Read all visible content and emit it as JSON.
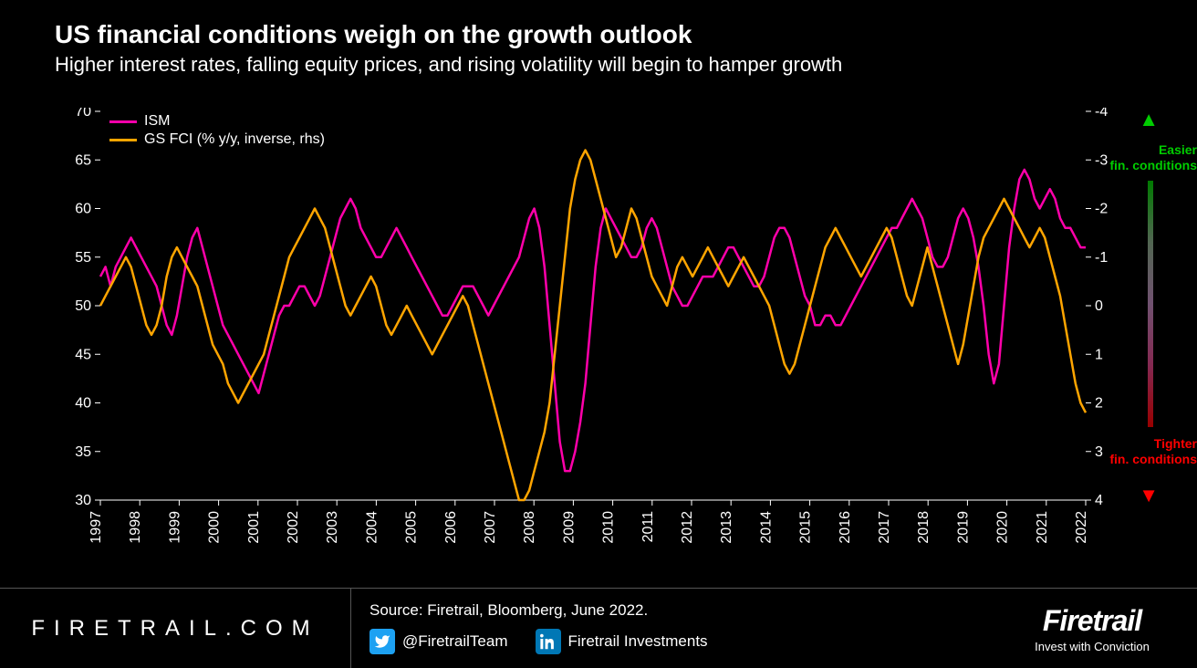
{
  "title": "US financial conditions weigh on the growth outlook",
  "subtitle": "Higher interest rates, falling equity prices, and rising volatility will begin to hamper growth",
  "chart": {
    "type": "line",
    "background_color": "#000000",
    "tick_color": "#ffffff",
    "tick_fontsize": 16,
    "line_width": 2.5,
    "left_axis": {
      "min": 30,
      "max": 70,
      "tick_step": 5,
      "ticks": [
        30,
        35,
        40,
        45,
        50,
        55,
        60,
        65,
        70
      ]
    },
    "right_axis": {
      "min": -4,
      "max": 4,
      "tick_step": 1,
      "ticks": [
        -4,
        -3,
        -2,
        -1,
        0,
        1,
        2,
        3,
        4
      ],
      "inverted": true
    },
    "x_axis": {
      "years": [
        1997,
        1998,
        1999,
        2000,
        2001,
        2002,
        2003,
        2004,
        2005,
        2006,
        2007,
        2008,
        2009,
        2010,
        2011,
        2012,
        2013,
        2014,
        2015,
        2016,
        2017,
        2018,
        2019,
        2020,
        2021,
        2022
      ],
      "label_rotation": -90
    },
    "series": [
      {
        "name": "ISM",
        "color": "#ff00aa",
        "axis": "left",
        "data": [
          53,
          54,
          52,
          54,
          55,
          56,
          57,
          56,
          55,
          54,
          53,
          52,
          50,
          48,
          47,
          49,
          52,
          55,
          57,
          58,
          56,
          54,
          52,
          50,
          48,
          47,
          46,
          45,
          44,
          43,
          42,
          41,
          43,
          45,
          47,
          49,
          50,
          50,
          51,
          52,
          52,
          51,
          50,
          51,
          53,
          55,
          57,
          59,
          60,
          61,
          60,
          58,
          57,
          56,
          55,
          55,
          56,
          57,
          58,
          57,
          56,
          55,
          54,
          53,
          52,
          51,
          50,
          49,
          49,
          50,
          51,
          52,
          52,
          52,
          51,
          50,
          49,
          50,
          51,
          52,
          53,
          54,
          55,
          57,
          59,
          60,
          58,
          54,
          48,
          42,
          36,
          33,
          33,
          35,
          38,
          42,
          48,
          54,
          58,
          60,
          59,
          58,
          57,
          56,
          55,
          55,
          56,
          58,
          59,
          58,
          56,
          54,
          52,
          51,
          50,
          50,
          51,
          52,
          53,
          53,
          53,
          54,
          55,
          56,
          56,
          55,
          54,
          53,
          52,
          52,
          53,
          55,
          57,
          58,
          58,
          57,
          55,
          53,
          51,
          50,
          48,
          48,
          49,
          49,
          48,
          48,
          49,
          50,
          51,
          52,
          53,
          54,
          55,
          56,
          57,
          58,
          58,
          59,
          60,
          61,
          60,
          59,
          57,
          55,
          54,
          54,
          55,
          57,
          59,
          60,
          59,
          57,
          54,
          50,
          45,
          42,
          44,
          50,
          56,
          60,
          63,
          64,
          63,
          61,
          60,
          61,
          62,
          61,
          59,
          58,
          58,
          57,
          56,
          56
        ]
      },
      {
        "name": "GS FCI (% y/y, inverse, rhs)",
        "color": "#ffa500",
        "axis": "right",
        "data": [
          0.0,
          -0.2,
          -0.4,
          -0.6,
          -0.8,
          -1.0,
          -0.8,
          -0.4,
          0.0,
          0.4,
          0.6,
          0.4,
          0.0,
          -0.6,
          -1.0,
          -1.2,
          -1.0,
          -0.8,
          -0.6,
          -0.4,
          0.0,
          0.4,
          0.8,
          1.0,
          1.2,
          1.6,
          1.8,
          2.0,
          1.8,
          1.6,
          1.4,
          1.2,
          1.0,
          0.6,
          0.2,
          -0.2,
          -0.6,
          -1.0,
          -1.2,
          -1.4,
          -1.6,
          -1.8,
          -2.0,
          -1.8,
          -1.6,
          -1.2,
          -0.8,
          -0.4,
          0.0,
          0.2,
          0.0,
          -0.2,
          -0.4,
          -0.6,
          -0.4,
          0.0,
          0.4,
          0.6,
          0.4,
          0.2,
          0.0,
          0.2,
          0.4,
          0.6,
          0.8,
          1.0,
          0.8,
          0.6,
          0.4,
          0.2,
          0.0,
          -0.2,
          0.0,
          0.4,
          0.8,
          1.2,
          1.6,
          2.0,
          2.4,
          2.8,
          3.2,
          3.6,
          4.0,
          4.0,
          3.8,
          3.4,
          3.0,
          2.6,
          2.0,
          1.0,
          0.0,
          -1.0,
          -2.0,
          -2.6,
          -3.0,
          -3.2,
          -3.0,
          -2.6,
          -2.2,
          -1.8,
          -1.4,
          -1.0,
          -1.2,
          -1.6,
          -2.0,
          -1.8,
          -1.4,
          -1.0,
          -0.6,
          -0.4,
          -0.2,
          0.0,
          -0.4,
          -0.8,
          -1.0,
          -0.8,
          -0.6,
          -0.8,
          -1.0,
          -1.2,
          -1.0,
          -0.8,
          -0.6,
          -0.4,
          -0.6,
          -0.8,
          -1.0,
          -0.8,
          -0.6,
          -0.4,
          -0.2,
          0.0,
          0.4,
          0.8,
          1.2,
          1.4,
          1.2,
          0.8,
          0.4,
          0.0,
          -0.4,
          -0.8,
          -1.2,
          -1.4,
          -1.6,
          -1.4,
          -1.2,
          -1.0,
          -0.8,
          -0.6,
          -0.8,
          -1.0,
          -1.2,
          -1.4,
          -1.6,
          -1.4,
          -1.0,
          -0.6,
          -0.2,
          0.0,
          -0.4,
          -0.8,
          -1.2,
          -0.8,
          -0.4,
          0.0,
          0.4,
          0.8,
          1.2,
          0.8,
          0.2,
          -0.4,
          -1.0,
          -1.4,
          -1.6,
          -1.8,
          -2.0,
          -2.2,
          -2.0,
          -1.8,
          -1.6,
          -1.4,
          -1.2,
          -1.4,
          -1.6,
          -1.4,
          -1.0,
          -0.6,
          -0.2,
          0.4,
          1.0,
          1.6,
          2.0,
          2.2
        ]
      }
    ],
    "annotations": {
      "easier": "Easier\nfin. conditions",
      "tighter": "Tighter\nfin. conditions",
      "easier_color": "#00cc00",
      "tighter_color": "#ff0000"
    }
  },
  "footer": {
    "website": "FIRETRAIL.COM",
    "source": "Source: Firetrail, Bloomberg, June 2022.",
    "twitter_handle": "@FiretrailTeam",
    "linkedin_handle": "Firetrail Investments",
    "twitter_bg": "#1da1f2",
    "linkedin_bg": "#0077b5",
    "logo": "Firetrail",
    "tagline": "Invest with Conviction"
  }
}
